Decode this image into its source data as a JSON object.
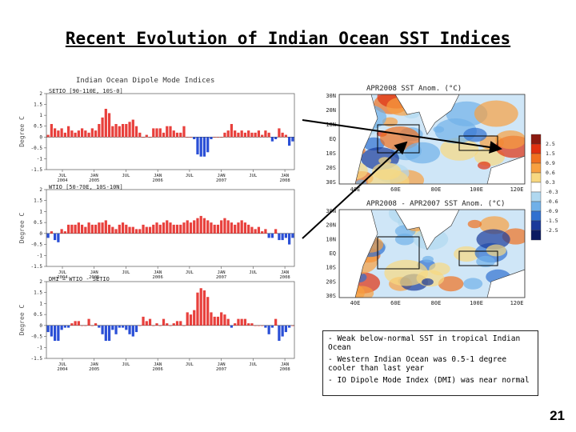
{
  "slide": {
    "title": "Recent Evolution of Indian Ocean SST Indices",
    "page_number": "21",
    "notes": [
      "-  Weak below-normal SST in tropical Indian Ocean",
      "-  Western Indian Ocean was 0.5-1 degree cooler than last year",
      "- IO Dipole Mode Index (DMI) was near normal"
    ]
  },
  "colors": {
    "positive": "#e8403c",
    "negative": "#2a4fd6",
    "warm": "#e86020",
    "cool": "#3a80d8"
  },
  "chart_data": [
    {
      "type": "bar",
      "title": "Indian Ocean Dipole Mode Indices",
      "subtitle": "SETIO [90-110E, 10S-0]",
      "ylabel": "Degree C",
      "ylim": [
        -1.5,
        2
      ],
      "yticks": [
        "2",
        "1.5",
        "1",
        "0.5",
        "0",
        "-0.5",
        "-1",
        "-1.5"
      ],
      "xticks": [
        [
          "JUL",
          "2004"
        ],
        [
          "JAN",
          "2005"
        ],
        [
          "JUL",
          ""
        ],
        [
          "JAN",
          "2006"
        ],
        [
          "JUL",
          ""
        ],
        [
          "JAN",
          "2007"
        ],
        [
          "JUL",
          ""
        ],
        [
          "JAN",
          "2008"
        ]
      ],
      "values": [
        0.1,
        0.6,
        0.4,
        0.3,
        0.4,
        0.2,
        0.5,
        0.3,
        0.2,
        0.3,
        0.4,
        0.3,
        0.2,
        0.4,
        0.3,
        0.6,
        0.9,
        1.3,
        1.1,
        0.5,
        0.6,
        0.5,
        0.6,
        0.6,
        0.7,
        0.8,
        0.5,
        0.2,
        0.0,
        0.1,
        0.0,
        0.4,
        0.4,
        0.4,
        0.2,
        0.5,
        0.5,
        0.3,
        0.2,
        0.2,
        0.5,
        0.0,
        0.0,
        -0.1,
        -0.8,
        -0.9,
        -0.9,
        -0.7,
        -0.1,
        0.0,
        0.0,
        0.0,
        0.2,
        0.3,
        0.6,
        0.3,
        0.2,
        0.3,
        0.2,
        0.3,
        0.2,
        0.2,
        0.3,
        0.1,
        0.3,
        0.2,
        -0.2,
        -0.1,
        0.4,
        0.2,
        0.1,
        -0.4,
        -0.2
      ]
    },
    {
      "type": "bar",
      "subtitle": "WTIO [50-70E, 10S-10N]",
      "ylabel": "Degree C",
      "ylim": [
        -1.5,
        2
      ],
      "yticks": [
        "2",
        "1.5",
        "1",
        "0.5",
        "0",
        "-0.5",
        "-1",
        "-1.5"
      ],
      "xticks": [
        [
          "JUL",
          "2004"
        ],
        [
          "JAN",
          "2005"
        ],
        [
          "JUL",
          ""
        ],
        [
          "JAN",
          "2006"
        ],
        [
          "JUL",
          ""
        ],
        [
          "JAN",
          "2007"
        ],
        [
          "JUL",
          ""
        ],
        [
          "JAN",
          "2008"
        ]
      ],
      "values": [
        -0.2,
        0.1,
        -0.3,
        -0.4,
        0.2,
        0.1,
        0.4,
        0.4,
        0.4,
        0.5,
        0.4,
        0.3,
        0.5,
        0.4,
        0.4,
        0.5,
        0.5,
        0.6,
        0.4,
        0.3,
        0.2,
        0.4,
        0.5,
        0.4,
        0.3,
        0.3,
        0.2,
        0.2,
        0.4,
        0.3,
        0.3,
        0.4,
        0.5,
        0.4,
        0.5,
        0.6,
        0.5,
        0.4,
        0.4,
        0.4,
        0.5,
        0.6,
        0.5,
        0.6,
        0.7,
        0.8,
        0.7,
        0.6,
        0.5,
        0.4,
        0.4,
        0.6,
        0.7,
        0.6,
        0.5,
        0.4,
        0.5,
        0.6,
        0.5,
        0.4,
        0.3,
        0.2,
        0.3,
        0.1,
        0.2,
        -0.2,
        -0.2,
        0.2,
        -0.3,
        -0.3,
        -0.2,
        -0.5,
        -0.2
      ]
    },
    {
      "type": "bar",
      "subtitle": "DMI = WTIO - SETIO",
      "ylabel": "Degree C",
      "ylim": [
        -1.5,
        2
      ],
      "yticks": [
        "2",
        "1.5",
        "1",
        "0.5",
        "0",
        "-0.5",
        "-1",
        "-1.5"
      ],
      "xticks": [
        [
          "JUL",
          "2004"
        ],
        [
          "JAN",
          "2005"
        ],
        [
          "JUL",
          ""
        ],
        [
          "JAN",
          "2006"
        ],
        [
          "JUL",
          ""
        ],
        [
          "JAN",
          "2007"
        ],
        [
          "JUL",
          ""
        ],
        [
          "JAN",
          "2008"
        ]
      ],
      "values": [
        -0.3,
        -0.5,
        -0.7,
        -0.7,
        -0.2,
        -0.1,
        -0.1,
        0.1,
        0.2,
        0.2,
        0.0,
        0.0,
        0.3,
        0.0,
        0.1,
        -0.1,
        -0.4,
        -0.7,
        -0.7,
        -0.2,
        -0.4,
        -0.1,
        -0.1,
        -0.2,
        -0.4,
        -0.5,
        -0.3,
        0.0,
        0.4,
        0.2,
        0.3,
        0.0,
        0.1,
        0.0,
        0.3,
        0.1,
        0.0,
        0.1,
        0.2,
        0.2,
        0.0,
        0.6,
        0.5,
        0.7,
        1.5,
        1.7,
        1.6,
        1.3,
        0.6,
        0.4,
        0.4,
        0.6,
        0.5,
        0.3,
        -0.1,
        0.1,
        0.3,
        0.3,
        0.3,
        0.1,
        0.1,
        0.0,
        0.0,
        0.0,
        -0.1,
        -0.4,
        -0.1,
        0.3,
        -0.7,
        -0.5,
        -0.3,
        -0.1,
        0.0
      ]
    }
  ],
  "maps": [
    {
      "title": "APR2008 SST Anom. (°C)",
      "lat_labels": [
        "30N",
        "20N",
        "10N",
        "EQ",
        "10S",
        "20S",
        "30S"
      ],
      "lon_labels": [
        "40E",
        "60E",
        "80E",
        "100E",
        "120E"
      ]
    },
    {
      "title": "APR2008 - APR2007 SST Anom. (°C)",
      "lat_labels": [
        "30N",
        "20N",
        "10N",
        "EQ",
        "10S",
        "20S",
        "30S"
      ],
      "lon_labels": [
        "40E",
        "60E",
        "80E",
        "100E",
        "120E"
      ]
    }
  ],
  "colorbar": {
    "levels": [
      "2.5",
      "1.5",
      "0.9",
      "0.6",
      "0.3",
      "-0.3",
      "-0.6",
      "-0.9",
      "-1.5",
      "-2.5"
    ],
    "colors": [
      "#8b1a10",
      "#e03010",
      "#f07020",
      "#f8a040",
      "#f8d880",
      "#ffffff",
      "#b0d8f0",
      "#70b0e8",
      "#3070d0",
      "#1a3a9a",
      "#0a1a60"
    ]
  }
}
